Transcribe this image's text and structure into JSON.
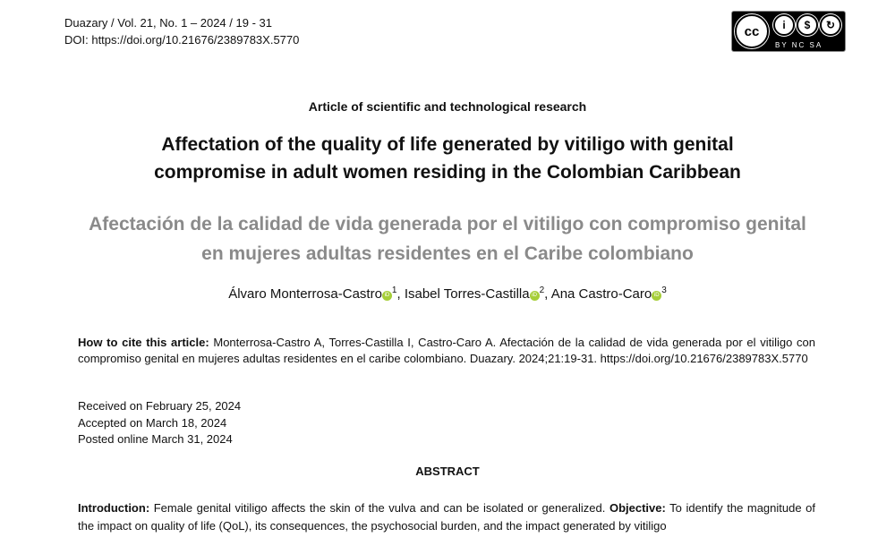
{
  "header": {
    "journal_line": "Duazary / Vol. 21, No. 1 – 2024 / 19 - 31",
    "doi_line": "DOI: https://doi.org/10.21676/2389783X.5770"
  },
  "license": {
    "icon": "cc-by-nc-sa-badge",
    "cc": "cc",
    "labels": "BY  NC  SA"
  },
  "article_type": "Article of scientific and technological research",
  "title_en": "Affectation of the quality of life generated by vitiligo with genital compromise in adult women residing in the Colombian Caribbean",
  "title_es": "Afectación de la calidad de vida generada por el vitiligo con compromiso genital en mujeres adultas residentes en el Caribe colombiano",
  "authors": [
    {
      "name": "Álvaro Monterrosa-Castro",
      "aff": "1",
      "sep": ", "
    },
    {
      "name": "Isabel Torres-Castilla",
      "aff": "2",
      "sep": ", "
    },
    {
      "name": "Ana Castro-Caro",
      "aff": "3",
      "sep": ""
    }
  ],
  "citation": {
    "label": "How to cite this article:",
    "text": " Monterrosa-Castro A, Torres-Castilla I, Castro-Caro A. Afectación de la calidad de vida generada por el vitiligo con compromiso genital en mujeres adultas residentes en el caribe colombiano. Duazary. 2024;21:19-31. https://doi.org/10.21676/2389783X.5770"
  },
  "dates": [
    "Received on February 25, 2024",
    "Accepted on March 18, 2024",
    "Posted online March 31, 2024"
  ],
  "abstract": {
    "heading": "ABSTRACT",
    "intro_label": "Introduction:",
    "intro_text": " Female genital vitiligo affects the skin of the vulva and can be isolated or generalized. ",
    "objective_label": "Objective:",
    "objective_text": " To identify the magnitude of the impact on quality of life (QoL), its consequences, the psychosocial burden, and the impact generated by vitiligo"
  }
}
